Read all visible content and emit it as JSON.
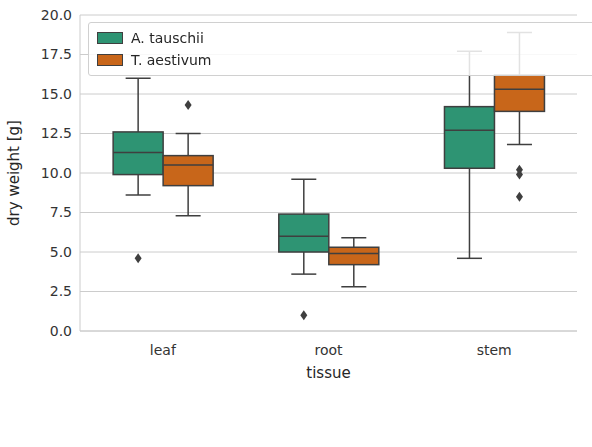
{
  "chart_data": {
    "type": "box",
    "x_label": "tissue",
    "y_label": "dry weight [g]",
    "categories": [
      "leaf",
      "root",
      "stem"
    ],
    "series": [
      {
        "name": "A. tauschii",
        "color": "#2e9473",
        "whisker_low": [
          8.6,
          3.6,
          4.6
        ],
        "q1": [
          9.9,
          5.0,
          10.3
        ],
        "median": [
          11.3,
          6.0,
          12.7
        ],
        "q3": [
          12.6,
          7.4,
          14.2
        ],
        "whisker_high": [
          16.0,
          9.6,
          17.7
        ],
        "outliers": [
          [
            4.6
          ],
          [
            1.0
          ],
          []
        ]
      },
      {
        "name": "T. aestivum",
        "color": "#c8661a",
        "whisker_low": [
          7.3,
          2.8,
          11.8
        ],
        "q1": [
          9.2,
          4.2,
          13.9
        ],
        "median": [
          10.5,
          4.9,
          15.3
        ],
        "q3": [
          11.1,
          5.3,
          16.2
        ],
        "whisker_high": [
          12.5,
          5.9,
          18.9
        ],
        "outliers": [
          [
            14.3
          ],
          [],
          [
            10.2,
            9.9,
            8.5
          ]
        ]
      }
    ],
    "ylim": [
      0,
      20
    ],
    "yticks": [
      {
        "value": 0,
        "label": "0.0"
      },
      2.5,
      {
        "value": 5,
        "label": "5.0"
      },
      7.5,
      {
        "value": 10,
        "label": "10.0"
      },
      12.5,
      {
        "value": 15,
        "label": "15.0"
      },
      17.5,
      {
        "value": 20,
        "label": "20.0"
      }
    ],
    "grid": true,
    "legend": "upper left",
    "marker": "diamond"
  }
}
